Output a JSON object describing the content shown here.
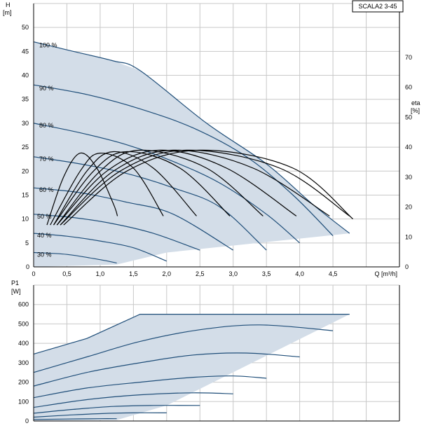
{
  "chart_data": [
    {
      "type": "line",
      "title": "SCALA2 3-45",
      "xlabel": "Q [m³/h]",
      "ylabel": "H",
      "ylabel_unit": "[m]",
      "y2label": "eta",
      "y2label_unit": "[%]",
      "xlim": [
        0,
        5.5
      ],
      "ylim": [
        0,
        55
      ],
      "y2lim": [
        0,
        88
      ],
      "x_ticks": [
        "0",
        "0,5",
        "1,0",
        "1,5",
        "2,0",
        "2,5",
        "3,0",
        "3,5",
        "4,0",
        "4,5"
      ],
      "x_tick_values": [
        0,
        0.5,
        1.0,
        1.5,
        2.0,
        2.5,
        3.0,
        3.5,
        4.0,
        4.5
      ],
      "y_ticks": [
        0,
        5,
        10,
        15,
        20,
        25,
        30,
        35,
        40,
        45,
        50
      ],
      "y2_ticks": [
        0,
        10,
        20,
        30,
        40,
        50,
        60,
        70
      ],
      "region": [
        [
          0,
          47
        ],
        [
          0.6,
          45
        ],
        [
          1.2,
          43
        ],
        [
          1.6,
          41
        ],
        [
          2.6,
          30
        ],
        [
          3.5,
          21.5
        ],
        [
          4.2,
          13
        ],
        [
          4.75,
          7
        ],
        [
          2.0,
          3
        ],
        [
          1.25,
          0.5
        ],
        [
          0,
          0
        ]
      ],
      "series": [
        {
          "name": "100 %",
          "x": [
            0,
            0.6,
            1.2,
            1.6,
            2.6,
            3.5,
            4.2,
            4.75
          ],
          "y": [
            47,
            45,
            43,
            41,
            30,
            21.5,
            13,
            7
          ]
        },
        {
          "name": "90 %",
          "x": [
            0,
            0.8,
            1.6,
            2.4,
            3.2,
            3.9,
            4.5
          ],
          "y": [
            38,
            36,
            33,
            29,
            23,
            15,
            6.5
          ]
        },
        {
          "name": "80 %",
          "x": [
            0,
            0.7,
            1.4,
            2.1,
            2.8,
            3.5,
            4.0
          ],
          "y": [
            30,
            28,
            25.5,
            22,
            17.5,
            11,
            5
          ]
        },
        {
          "name": "70 %",
          "x": [
            0,
            0.7,
            1.4,
            2.1,
            2.8,
            3.5
          ],
          "y": [
            23,
            21.5,
            19.5,
            16.5,
            12.5,
            3.5
          ]
        },
        {
          "name": "60 %",
          "x": [
            0,
            0.7,
            1.4,
            2.1,
            3.0
          ],
          "y": [
            16.5,
            15.5,
            13.5,
            11,
            3.5
          ]
        },
        {
          "name": "50 %",
          "x": [
            0,
            0.6,
            1.2,
            1.8,
            2.5
          ],
          "y": [
            11,
            10.3,
            9,
            7,
            3.5
          ]
        },
        {
          "name": "40 %",
          "x": [
            0,
            0.5,
            1.0,
            1.5,
            2.0
          ],
          "y": [
            7,
            6.4,
            5.4,
            4,
            1.2
          ]
        },
        {
          "name": "30 %",
          "x": [
            0,
            0.5,
            1.0,
            1.25
          ],
          "y": [
            3,
            2.6,
            1.5,
            0.8
          ]
        }
      ],
      "eta_series": [
        {
          "x": [
            0.2,
            0.45,
            0.7,
            0.95,
            1.2,
            1.26
          ],
          "y": [
            14,
            30,
            38,
            33,
            21,
            17
          ]
        },
        {
          "x": [
            0.25,
            0.7,
            1.0,
            1.5,
            1.95
          ],
          "y": [
            14,
            32,
            38,
            33,
            17
          ]
        },
        {
          "x": [
            0.3,
            0.8,
            1.2,
            1.8,
            2.45
          ],
          "y": [
            14,
            32,
            38.5,
            33,
            17
          ]
        },
        {
          "x": [
            0.3,
            0.9,
            1.4,
            2.2,
            2.95
          ],
          "y": [
            14,
            32,
            38.5,
            33,
            17
          ]
        },
        {
          "x": [
            0.35,
            1.0,
            1.6,
            2.6,
            3.45
          ],
          "y": [
            14,
            32,
            39,
            33,
            17
          ]
        },
        {
          "x": [
            0.35,
            1.1,
            1.9,
            2.9,
            3.95
          ],
          "y": [
            14,
            32,
            39,
            33,
            17
          ]
        },
        {
          "x": [
            0.4,
            1.2,
            2.1,
            3.3,
            4.45
          ],
          "y": [
            14,
            32,
            39,
            33,
            17
          ]
        },
        {
          "x": [
            0.4,
            1.3,
            2.3,
            3.7,
            4.75
          ],
          "y": [
            14,
            32,
            39,
            33,
            17
          ]
        },
        {
          "x": [
            0.45,
            1.4,
            2.5,
            3.9,
            4.8
          ],
          "y": [
            14,
            32,
            39,
            33,
            16
          ]
        }
      ]
    },
    {
      "type": "line",
      "ylabel": "P1",
      "ylabel_unit": "[W]",
      "xlim": [
        0,
        5.5
      ],
      "ylim": [
        0,
        700
      ],
      "y_ticks": [
        0,
        100,
        200,
        300,
        400,
        500,
        600
      ],
      "region": [
        [
          0,
          345
        ],
        [
          0.8,
          425
        ],
        [
          1.6,
          550
        ],
        [
          4.75,
          550
        ],
        [
          2.0,
          80
        ],
        [
          1.25,
          5
        ],
        [
          0,
          0
        ]
      ],
      "series": [
        {
          "x": [
            0,
            0.8,
            1.6,
            4.75
          ],
          "y": [
            345,
            425,
            550,
            550
          ]
        },
        {
          "x": [
            0,
            0.8,
            1.6,
            2.5,
            3.4,
            4.5
          ],
          "y": [
            250,
            330,
            410,
            470,
            495,
            465
          ]
        },
        {
          "x": [
            0,
            0.8,
            1.6,
            2.4,
            3.2,
            4.0
          ],
          "y": [
            180,
            250,
            300,
            340,
            350,
            330
          ]
        },
        {
          "x": [
            0,
            0.8,
            1.6,
            2.4,
            3.0,
            3.5
          ],
          "y": [
            120,
            170,
            200,
            225,
            232,
            220
          ]
        },
        {
          "x": [
            0,
            0.8,
            1.6,
            2.4,
            3.0
          ],
          "y": [
            70,
            110,
            135,
            145,
            140
          ]
        },
        {
          "x": [
            0,
            0.6,
            1.2,
            1.8,
            2.5
          ],
          "y": [
            40,
            60,
            75,
            80,
            80
          ]
        },
        {
          "x": [
            0,
            0.5,
            1.0,
            1.5,
            2.0
          ],
          "y": [
            20,
            30,
            38,
            42,
            42
          ]
        },
        {
          "x": [
            0,
            0.5,
            1.0,
            1.25
          ],
          "y": [
            8,
            10,
            12,
            12
          ]
        }
      ]
    }
  ]
}
